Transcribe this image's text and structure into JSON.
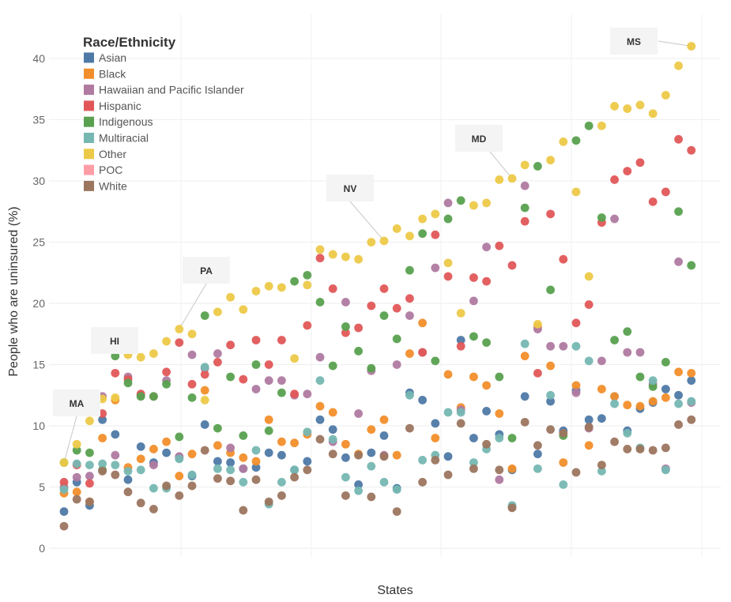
{
  "chart_data": {
    "type": "scatter",
    "xlabel": "States",
    "ylabel": "People who are uninsured (%)",
    "ylim": [
      0,
      42
    ],
    "yticks": [
      0,
      5,
      10,
      15,
      20,
      25,
      30,
      35,
      40
    ],
    "grid": true,
    "legend": {
      "title": "Race/Ethnicity",
      "placement": "top-left"
    },
    "series": [
      {
        "name": "Asian",
        "color": "#4e79a7",
        "values": [
          3.0,
          5.4,
          3.5,
          10.5,
          9.3,
          5.6,
          8.3,
          7.0,
          7.8,
          7.4,
          5.9,
          10.1,
          7.1,
          7.0,
          6.5,
          6.6,
          7.8,
          7.6,
          6.4,
          7.1,
          10.5,
          9.7,
          7.4,
          5.2,
          7.8,
          9.2,
          4.9,
          12.7,
          12.1,
          10.2,
          7.5,
          17.0,
          9.0,
          11.2,
          9.3,
          6.4,
          12.4,
          7.7,
          12.0,
          9.6,
          12.9,
          10.5,
          10.6,
          12.4,
          9.6,
          11.4,
          11.9,
          13.0,
          12.5,
          13.7
        ]
      },
      {
        "name": "Black",
        "color": "#f28e2b",
        "values": [
          4.5,
          4.6,
          3.8,
          9.0,
          12.1,
          6.6,
          7.3,
          8.1,
          8.7,
          5.9,
          7.7,
          12.9,
          8.4,
          7.8,
          7.4,
          7.1,
          10.5,
          8.7,
          8.6,
          9.3,
          11.6,
          11.1,
          8.5,
          7.7,
          9.7,
          10.5,
          7.6,
          15.9,
          18.4,
          9.0,
          14.2,
          11.5,
          14.0,
          13.3,
          11.0,
          6.5,
          15.7,
          18.1,
          14.9,
          7.0,
          13.3,
          8.4,
          13.0,
          12.4,
          11.7,
          11.6,
          12.0,
          12.3,
          14.4,
          14.3
        ]
      },
      {
        "name": "Hawaiian and Pacific Islander",
        "color": "#b07aa1",
        "values": [
          5.0,
          5.8,
          5.9,
          12.4,
          7.6,
          14.0,
          12.5,
          6.8,
          13.7,
          7.5,
          15.8,
          14.7,
          15.9,
          8.2,
          6.5,
          13.0,
          13.7,
          13.7,
          12.5,
          12.6,
          15.6,
          8.7,
          20.1,
          11.0,
          14.5,
          7.6,
          15.0,
          19.0,
          16.0,
          22.9,
          28.2,
          11.3,
          20.2,
          24.6,
          5.6,
          3.4,
          29.6,
          17.9,
          16.5,
          16.5,
          12.7,
          9.8,
          15.3,
          26.9,
          16.0,
          16.0,
          13.4,
          6.5,
          23.4,
          11.9
        ]
      },
      {
        "name": "Hispanic",
        "color": "#e15759",
        "values": [
          5.4,
          6.8,
          5.3,
          11.0,
          14.3,
          13.8,
          12.6,
          12.4,
          14.4,
          16.8,
          13.4,
          14.2,
          15.2,
          16.6,
          13.8,
          17.0,
          15.0,
          17.0,
          12.6,
          18.2,
          23.7,
          21.2,
          17.6,
          18.0,
          19.8,
          21.2,
          19.6,
          20.4,
          16.0,
          25.6,
          22.2,
          16.5,
          22.1,
          21.8,
          24.7,
          23.1,
          26.7,
          14.3,
          27.3,
          23.6,
          18.4,
          19.9,
          26.6,
          30.1,
          30.8,
          31.5,
          28.3,
          29.1,
          33.4,
          32.5
        ]
      },
      {
        "name": "Indigenous",
        "color": "#59a14f",
        "values": [
          7.0,
          8.0,
          7.8,
          6.4,
          15.7,
          13.5,
          12.4,
          12.4,
          13.4,
          9.1,
          12.3,
          19.0,
          9.8,
          14.0,
          9.2,
          15.0,
          9.6,
          12.7,
          21.8,
          22.3,
          20.1,
          14.9,
          18.1,
          16.1,
          14.7,
          19.0,
          17.1,
          22.7,
          25.7,
          15.3,
          26.9,
          28.4,
          17.3,
          16.8,
          14.0,
          9.0,
          27.8,
          31.2,
          21.1,
          9.2,
          33.3,
          34.5,
          27.0,
          17.0,
          17.7,
          14.0,
          13.2,
          15.2,
          27.5,
          23.1
        ]
      },
      {
        "name": "Multiracial",
        "color": "#76b7b2",
        "values": [
          4.8,
          6.9,
          6.8,
          6.9,
          6.8,
          6.3,
          6.4,
          4.9,
          4.9,
          7.3,
          6.0,
          14.8,
          6.5,
          6.4,
          5.4,
          8.0,
          3.6,
          5.4,
          6.4,
          9.5,
          13.7,
          8.9,
          5.8,
          4.7,
          6.7,
          5.4,
          4.8,
          12.5,
          7.2,
          7.6,
          11.1,
          11.1,
          7.0,
          8.1,
          9.0,
          3.5,
          16.7,
          6.5,
          12.5,
          5.2,
          16.5,
          15.3,
          6.3,
          11.8,
          9.4,
          8.2,
          13.7,
          6.4,
          11.8,
          12.0
        ]
      },
      {
        "name": "Other",
        "color": "#edc948",
        "values": [
          7.0,
          8.5,
          10.4,
          12.2,
          12.3,
          15.8,
          15.6,
          15.9,
          16.9,
          17.9,
          17.5,
          12.1,
          19.3,
          20.5,
          19.5,
          21.0,
          21.4,
          21.3,
          15.5,
          21.5,
          24.4,
          24.0,
          23.8,
          23.6,
          25.0,
          25.1,
          26.1,
          25.5,
          26.9,
          27.3,
          23.3,
          19.2,
          28.0,
          28.2,
          30.1,
          30.2,
          31.3,
          18.3,
          31.7,
          33.2,
          29.1,
          22.2,
          34.5,
          36.1,
          35.9,
          36.2,
          35.5,
          37.0,
          39.4,
          41.0
        ]
      },
      {
        "name": "POC",
        "color": "#ff9da7",
        "values": []
      },
      {
        "name": "White",
        "color": "#9c755f",
        "values": [
          1.8,
          4.0,
          3.8,
          6.3,
          6.0,
          4.6,
          3.7,
          3.2,
          5.1,
          4.3,
          5.1,
          8.0,
          5.7,
          5.5,
          3.1,
          5.6,
          3.8,
          4.3,
          5.8,
          6.4,
          8.9,
          7.7,
          4.3,
          7.6,
          4.2,
          7.5,
          3.0,
          9.8,
          5.4,
          7.2,
          6.0,
          10.2,
          6.5,
          8.5,
          6.4,
          3.3,
          10.3,
          8.4,
          9.7,
          9.4,
          6.2,
          9.9,
          6.8,
          8.7,
          8.1,
          8.1,
          8.0,
          8.2,
          10.1,
          10.5
        ]
      }
    ],
    "annotations": [
      {
        "label": "MA",
        "state_index": 0,
        "y": 7.0
      },
      {
        "label": "HI",
        "state_index": 4,
        "y": 15.7
      },
      {
        "label": "PA",
        "state_index": 9,
        "y": 17.9
      },
      {
        "label": "NV",
        "state_index": 25,
        "y": 25.1
      },
      {
        "label": "MD",
        "state_index": 35,
        "y": 30.2
      },
      {
        "label": "MS",
        "state_index": 49,
        "y": 41.0
      }
    ]
  }
}
